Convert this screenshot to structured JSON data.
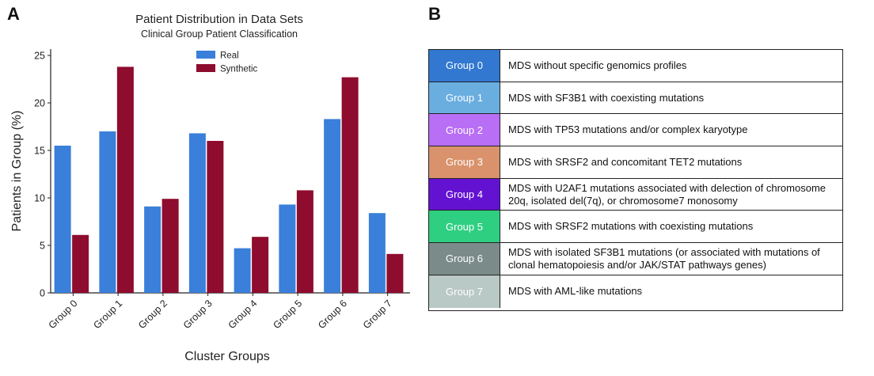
{
  "panel_a": {
    "letter": "A"
  },
  "panel_b": {
    "letter": "B"
  },
  "chart_data": {
    "type": "bar",
    "title": "Patient Distribution in Data Sets",
    "subtitle": "Clinical Group Patient Classification",
    "xlabel": "Cluster Groups",
    "ylabel": "Patients in Group (%)",
    "ylim": [
      0,
      25
    ],
    "yticks": [
      "0",
      "5",
      "10",
      "15",
      "20",
      "25"
    ],
    "yticks_values": [
      0,
      5,
      10,
      15,
      20,
      25
    ],
    "grid": false,
    "legend_position": "top",
    "categories": [
      "Group 0",
      "Group 1",
      "Group 2",
      "Group 3",
      "Group 4",
      "Group 5",
      "Group 6",
      "Group 7"
    ],
    "series": [
      {
        "name": "Real",
        "color": "#3a7fd9",
        "values": [
          15.5,
          17.0,
          9.1,
          16.8,
          4.7,
          9.3,
          18.3,
          8.4
        ]
      },
      {
        "name": "Synthetic",
        "color": "#8e0c2e",
        "values": [
          6.1,
          23.8,
          9.9,
          16.0,
          5.9,
          10.8,
          22.7,
          4.1
        ]
      }
    ]
  },
  "table": {
    "rows": [
      {
        "group": "Group 0",
        "color": "#3278d0",
        "desc": "MDS without specific genomics profiles"
      },
      {
        "group": "Group 1",
        "color": "#6aaee0",
        "desc": "MDS with SF3B1 with coexisting mutations"
      },
      {
        "group": "Group 2",
        "color": "#b86ef5",
        "desc": "MDS with TP53 mutations and/or complex karyotype"
      },
      {
        "group": "Group 3",
        "color": "#d9926c",
        "desc": "MDS with SRSF2 and concomitant TET2 mutations"
      },
      {
        "group": "Group 4",
        "color": "#6412d2",
        "desc": "MDS with U2AF1 mutations associated with delection of chromosome 20q, isolated del(7q), or chromosome7 monosomy"
      },
      {
        "group": "Group 5",
        "color": "#2fcf82",
        "desc": "MDS with SRSF2 mutations with coexisting mutations"
      },
      {
        "group": "Group 6",
        "color": "#7a8b8a",
        "desc": "MDS with isolated SF3B1 mutations (or associated with mutations of clonal hematopoiesis and/or JAK/STAT pathways genes)"
      },
      {
        "group": "Group 7",
        "color": "#b9c9c5",
        "desc": "MDS with AML-like mutations"
      }
    ]
  }
}
